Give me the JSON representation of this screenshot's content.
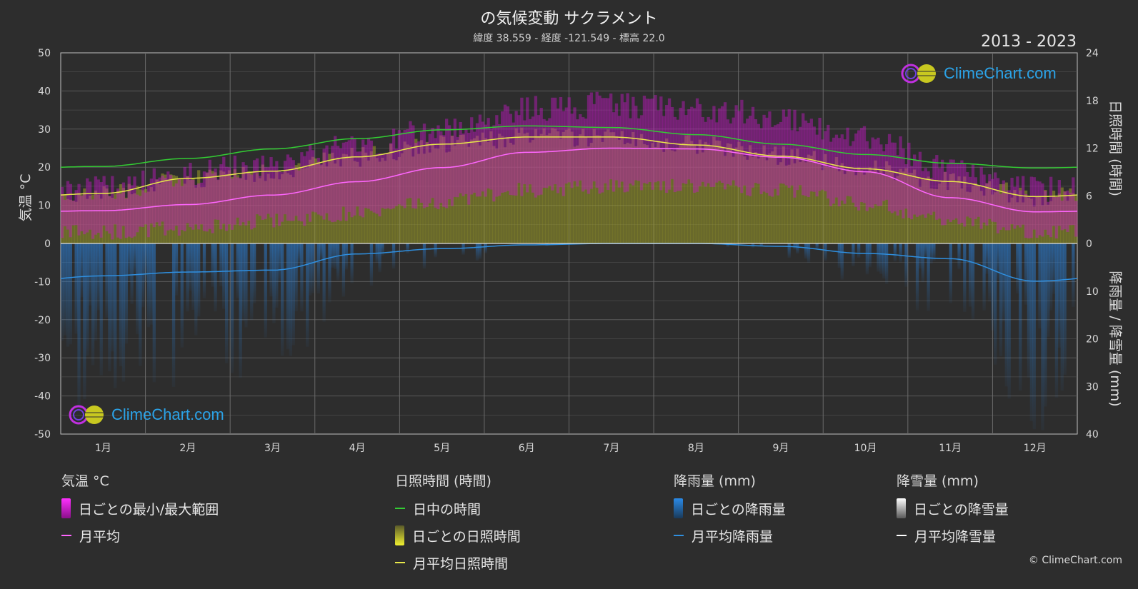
{
  "chart_data": {
    "type": "area",
    "title": "の気候変動 サクラメント",
    "subtitle": "緯度 38.559 - 経度 -121.549 - 標高 22.0",
    "period": "2013 - 2023",
    "categories": [
      "1月",
      "2月",
      "3月",
      "4月",
      "5月",
      "6月",
      "7月",
      "8月",
      "9月",
      "10月",
      "11月",
      "12月"
    ],
    "y_left": {
      "label": "気温 °C",
      "ticks": [
        50,
        40,
        30,
        20,
        10,
        0,
        -10,
        -20,
        -30,
        -40,
        -50
      ],
      "lim": [
        -50,
        50
      ]
    },
    "y_right_top": {
      "label": "日照時間 (時間)",
      "ticks": [
        24,
        18,
        12,
        6,
        0
      ],
      "lim": [
        0,
        24
      ]
    },
    "y_right_bottom": {
      "label": "降雨量 / 降雪量 (mm)",
      "ticks": [
        10,
        20,
        30,
        40
      ],
      "lim": [
        0,
        40
      ]
    },
    "series": [
      {
        "name": "日中の時間",
        "unit": "hours",
        "color": "#33cc33",
        "values": [
          9.7,
          10.7,
          11.9,
          13.2,
          14.3,
          14.8,
          14.6,
          13.7,
          12.5,
          11.2,
          10.1,
          9.5
        ]
      },
      {
        "name": "月平均日照時間",
        "unit": "hours",
        "color": "#e8e84a",
        "values": [
          6.3,
          8.2,
          9.1,
          10.9,
          12.5,
          13.4,
          13.4,
          12.4,
          11.0,
          9.4,
          7.8,
          5.9
        ]
      },
      {
        "name": "月平均",
        "unit": "°C",
        "color": "#ff66ff",
        "values": [
          8.6,
          10.2,
          12.7,
          16.2,
          19.9,
          23.9,
          25.0,
          24.8,
          22.6,
          18.8,
          12.0,
          8.3
        ]
      },
      {
        "name": "月平均降雨量",
        "unit": "mm",
        "color": "#2f8fdf",
        "values": [
          6.8,
          6.0,
          5.6,
          2.2,
          1.1,
          0.3,
          0.0,
          0.0,
          0.6,
          2.1,
          3.2,
          7.9
        ]
      },
      {
        "name": "日ごとの最小/最大範囲 (max)",
        "unit": "°C",
        "values": [
          13,
          17,
          20,
          24,
          29,
          34,
          35,
          34,
          32,
          26,
          18,
          13
        ]
      },
      {
        "name": "日ごとの最小/最大範囲 (min)",
        "unit": "°C",
        "values": [
          3,
          4,
          6,
          8,
          11,
          14,
          15,
          15,
          14,
          10,
          6,
          3
        ]
      }
    ]
  },
  "legend": {
    "temp": {
      "title": "気温 °C",
      "range": "日ごとの最小/最大範囲",
      "avg": "月平均"
    },
    "sun": {
      "title": "日照時間 (時間)",
      "daylight": "日中の時間",
      "daily": "日ごとの日照時間",
      "avg": "月平均日照時間"
    },
    "rain": {
      "title": "降雨量 (mm)",
      "daily": "日ごとの降雨量",
      "avg": "月平均降雨量"
    },
    "snow": {
      "title": "降雪量 (mm)",
      "daily": "日ごとの降雪量",
      "avg": "月平均降雪量"
    }
  },
  "brand": "ClimeChart.com",
  "copyright": "© ClimeChart.com",
  "colors": {
    "background": "#2d2d2d",
    "temp_range": "#d020d0",
    "sunshine": "#c8c832",
    "rain": "#2a7fd6",
    "snow": "#ffffff"
  }
}
